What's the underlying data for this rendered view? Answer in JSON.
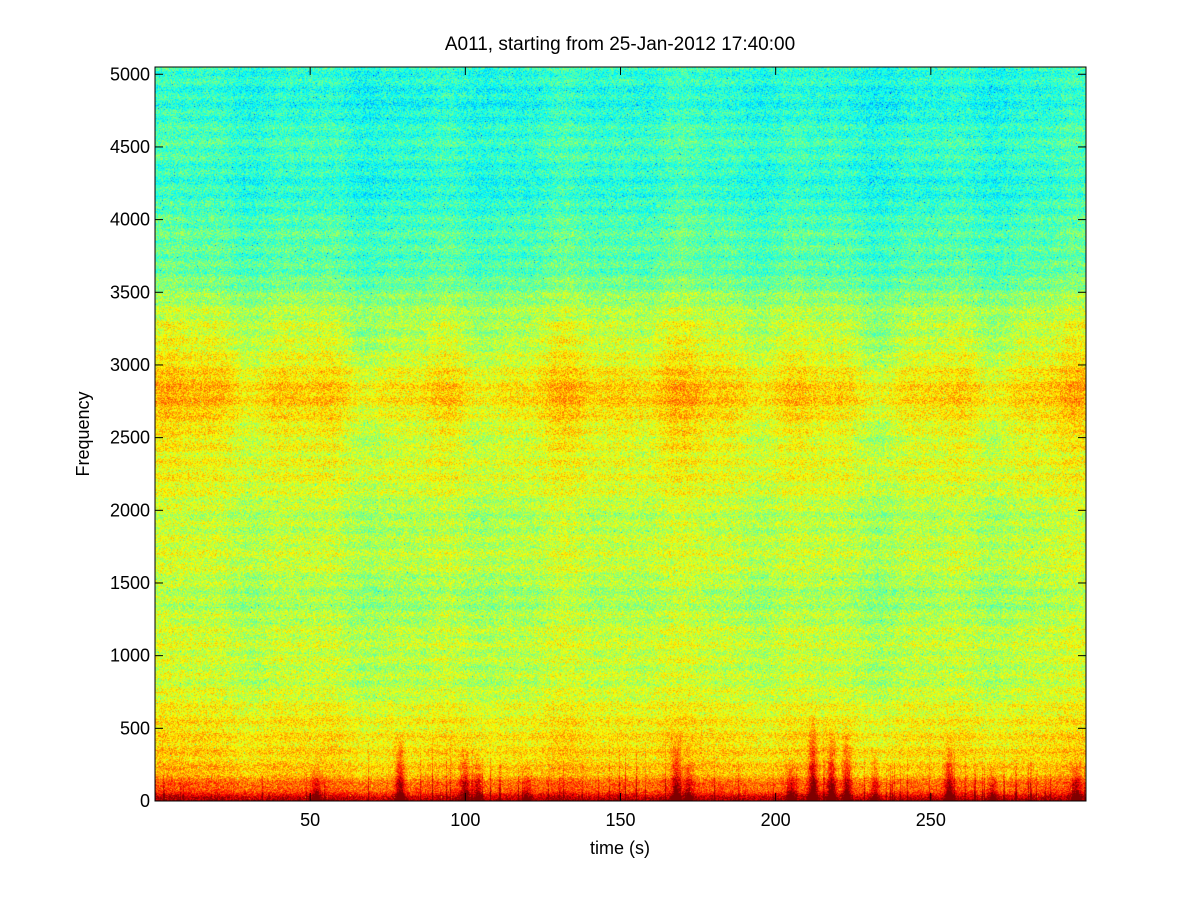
{
  "chart_data": {
    "type": "heatmap",
    "title": "A011, starting from 25-Jan-2012 17:40:00",
    "xlabel": "time (s)",
    "ylabel": "Frequency",
    "xlim": [
      0,
      300
    ],
    "ylim": [
      0,
      5050
    ],
    "xticks": [
      50,
      100,
      150,
      200,
      250
    ],
    "yticks": [
      0,
      500,
      1000,
      1500,
      2000,
      2500,
      3000,
      3500,
      4000,
      4500,
      5000
    ],
    "grid": false,
    "legend": "none",
    "colormap": "jet",
    "intensity_profile_by_frequency": [
      {
        "f": 0,
        "level": 0.95
      },
      {
        "f": 60,
        "level": 0.82
      },
      {
        "f": 200,
        "level": 0.7
      },
      {
        "f": 500,
        "level": 0.62
      },
      {
        "f": 1000,
        "level": 0.56
      },
      {
        "f": 1500,
        "level": 0.55
      },
      {
        "f": 2000,
        "level": 0.57
      },
      {
        "f": 2400,
        "level": 0.6
      },
      {
        "f": 2800,
        "level": 0.66
      },
      {
        "f": 3100,
        "level": 0.6
      },
      {
        "f": 3500,
        "level": 0.5
      },
      {
        "f": 4000,
        "level": 0.43
      },
      {
        "f": 5050,
        "level": 0.41
      }
    ],
    "transient_events": [
      {
        "t": 52,
        "strength": 0.6,
        "fmax": 250
      },
      {
        "t": 79,
        "strength": 0.8,
        "fmax": 500
      },
      {
        "t": 100,
        "strength": 0.7,
        "fmax": 450
      },
      {
        "t": 104,
        "strength": 0.6,
        "fmax": 400
      },
      {
        "t": 120,
        "strength": 0.4,
        "fmax": 300
      },
      {
        "t": 168,
        "strength": 0.7,
        "fmax": 500
      },
      {
        "t": 172,
        "strength": 0.5,
        "fmax": 350
      },
      {
        "t": 205,
        "strength": 0.6,
        "fmax": 300
      },
      {
        "t": 212,
        "strength": 0.9,
        "fmax": 650
      },
      {
        "t": 218,
        "strength": 0.8,
        "fmax": 550
      },
      {
        "t": 223,
        "strength": 0.7,
        "fmax": 550
      },
      {
        "t": 232,
        "strength": 0.5,
        "fmax": 400
      },
      {
        "t": 256,
        "strength": 0.8,
        "fmax": 450
      },
      {
        "t": 270,
        "strength": 0.5,
        "fmax": 350
      },
      {
        "t": 297,
        "strength": 0.6,
        "fmax": 300
      }
    ]
  }
}
